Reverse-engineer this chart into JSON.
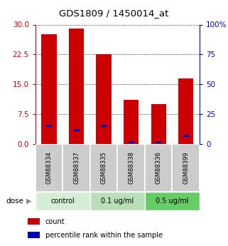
{
  "title": "GDS1809 / 1450014_at",
  "samples": [
    "GSM88334",
    "GSM88337",
    "GSM88335",
    "GSM88338",
    "GSM88336",
    "GSM88399"
  ],
  "red_values": [
    27.5,
    29.0,
    22.5,
    11.0,
    10.0,
    16.5
  ],
  "blue_values": [
    4.5,
    3.5,
    4.5,
    0.5,
    0.5,
    2.0
  ],
  "group_defs": [
    [
      0,
      1,
      "control",
      "#d4edd4"
    ],
    [
      2,
      3,
      "0.1 ug/ml",
      "#b8e0b8"
    ],
    [
      4,
      5,
      "0.5 ug/ml",
      "#66cc66"
    ]
  ],
  "left_yticks": [
    0,
    7.5,
    15,
    22.5,
    30
  ],
  "right_yticks": [
    0,
    25,
    50,
    75,
    100
  ],
  "right_ytick_labels": [
    "0",
    "25",
    "50",
    "75",
    "100%"
  ],
  "left_color": "#cc0000",
  "right_color": "#0000cc",
  "bar_color_red": "#cc0000",
  "bar_color_blue": "#0000bb",
  "bar_width": 0.55,
  "ylim_left": [
    0,
    30
  ],
  "ylim_right": [
    0,
    100
  ],
  "sample_bg": "#cccccc",
  "bg_white": "#ffffff"
}
